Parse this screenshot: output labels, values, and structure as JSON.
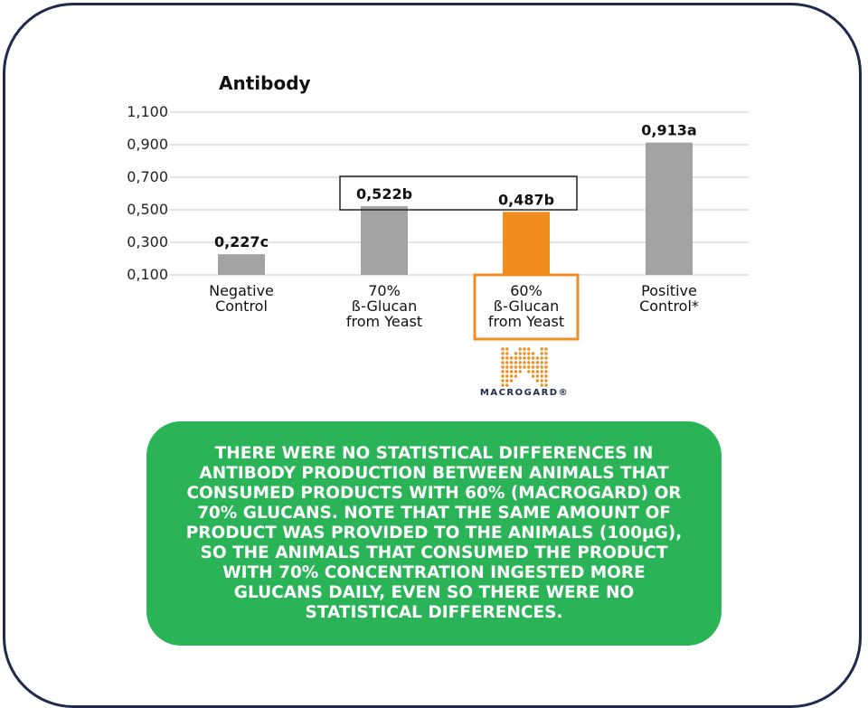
{
  "chart_data": {
    "type": "bar",
    "title": "Antibody",
    "categories": [
      [
        "Negative",
        "Control"
      ],
      [
        "70%",
        "ß-Glucan",
        "from Yeast"
      ],
      [
        "60%",
        "ß-Glucan",
        "from Yeast"
      ],
      [
        "Positive",
        "Control*"
      ]
    ],
    "values": [
      0.227,
      0.522,
      0.487,
      0.913
    ],
    "data_labels": [
      "0,227c",
      "0,522b",
      "0,487b",
      "0,913a"
    ],
    "colors": [
      "#a3a3a3",
      "#a3a3a3",
      "#f28c1e",
      "#a3a3a3"
    ],
    "ylim": [
      0.1,
      1.1
    ],
    "yticks": [
      0.1,
      0.3,
      0.5,
      0.7,
      0.9,
      1.1
    ],
    "ytick_labels": [
      "0,100",
      "0,300",
      "0,500",
      "0,700",
      "0,900",
      "1,100"
    ],
    "grid": true,
    "highlight_category_index": 2,
    "bracket_group": [
      1,
      2
    ]
  },
  "logo": {
    "text": "MACROGARD®",
    "color": "#f28c1e"
  },
  "note": {
    "text": "THERE WERE NO STATISTICAL DIFFERENCES IN ANTIBODY PRODUCTION BETWEEN ANIMALS THAT CONSUMED PRODUCTS WITH 60% (MACROGARD) OR 70% GLUCANS. NOTE THAT THE SAME AMOUNT OF PRODUCT WAS PROVIDED TO THE ANIMALS (100µG), SO THE ANIMALS THAT CONSUMED THE PRODUCT WITH 70% CONCENTRATION INGESTED MORE GLUCANS DAILY, EVEN SO THERE WERE NO STATISTICAL DIFFERENCES.",
    "background": "#2ab457"
  }
}
